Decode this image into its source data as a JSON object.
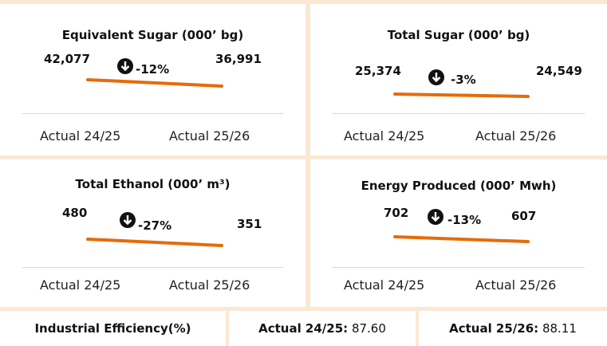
{
  "cards": [
    {
      "title": "Equivalent Sugar (000’ bg)",
      "left_value": "42,077",
      "change": "-12%",
      "right_value": "36,991",
      "left_label": "Actual 24/25",
      "right_label": "Actual 25/26"
    },
    {
      "title": "Total Sugar (000’ bg)",
      "left_value": "25,374",
      "change": "-3%",
      "right_value": "24,549",
      "left_label": "Actual 24/25",
      "right_label": "Actual 25/26"
    },
    {
      "title": "Total Ethanol (000’ m³)",
      "left_value": "480",
      "change": "-27%",
      "right_value": "351",
      "left_label": "Actual 24/25",
      "right_label": "Actual 25/26"
    },
    {
      "title": "Energy Produced (000’ Mwh)",
      "left_value": "702",
      "change": "-13%",
      "right_value": "607",
      "left_label": "Actual 24/25",
      "right_label": "Actual 25/26"
    }
  ],
  "efficiency": {
    "label": "Industrial Efficiency(%)",
    "first_label": "Actual 24/25:",
    "first_value": "87.60",
    "second_label": "Actual 25/26:",
    "second_value": "88.11"
  }
}
